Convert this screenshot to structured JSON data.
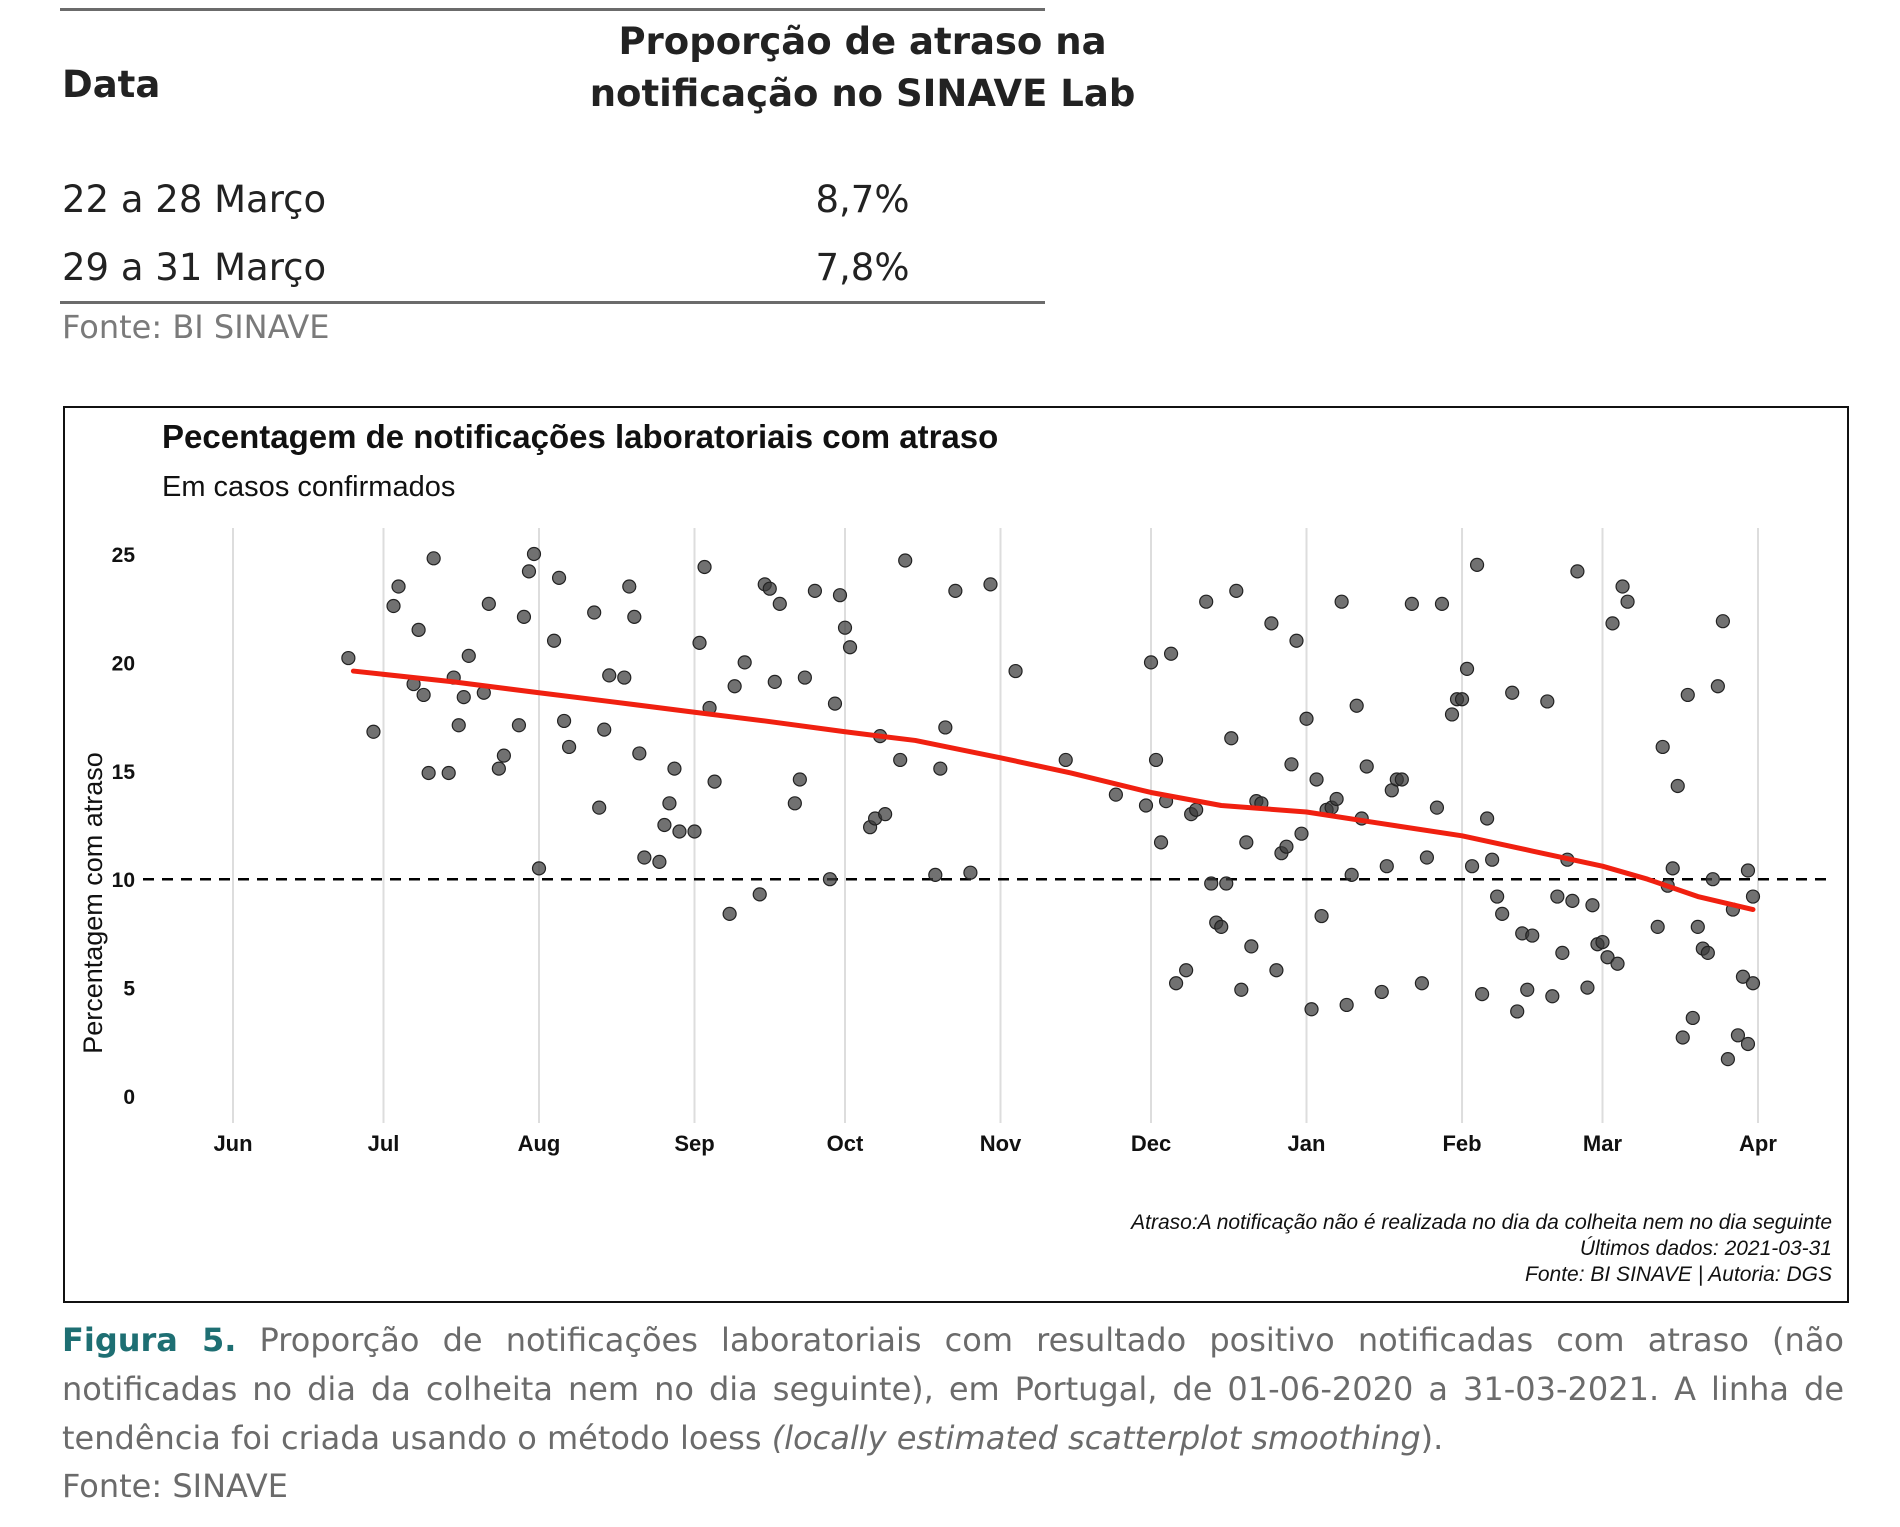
{
  "table": {
    "header_date": "Data",
    "header_prop": "Proporção de atraso na notificação no SINAVE Lab",
    "rows": [
      {
        "date": "22 a 28 Março",
        "value": "8,7%"
      },
      {
        "date": "29 a 31 Março",
        "value": "7,8%"
      }
    ],
    "source": "Fonte: BI SINAVE"
  },
  "chart_data": {
    "type": "scatter",
    "title": "Pecentagem de notificações laboratoriais com atraso",
    "subtitle": "Em casos confirmados",
    "ylabel": "Percentagem com atraso",
    "xlabel": "",
    "ylim": [
      0,
      25
    ],
    "yticks": [
      0,
      5,
      10,
      15,
      20,
      25
    ],
    "xtick_labels": [
      "Jun",
      "Jul",
      "Aug",
      "Sep",
      "Oct",
      "Nov",
      "Dec",
      "Jan",
      "Feb",
      "Mar",
      "Apr"
    ],
    "xtick_dates": [
      "2020-06-01",
      "2020-07-01",
      "2020-08-01",
      "2020-09-01",
      "2020-10-01",
      "2020-11-01",
      "2020-12-01",
      "2021-01-01",
      "2021-02-01",
      "2021-03-01",
      "2021-04-01"
    ],
    "grid": "vertical lines at month ticks",
    "reference_line": {
      "y": 10,
      "style": "dashed"
    },
    "colors": {
      "points": "#3a3a3a",
      "trend": "#f02010",
      "reference": "#000000",
      "grid": "#dddddd"
    },
    "annotations": [
      "Atraso:A notificação não é realizada no dia da colheita nem no dia seguinte",
      "Últimos dados: 2021-03-31",
      "Fonte: BI SINAVE | Autoria: DGS"
    ],
    "series": [
      {
        "name": "",
        "type": "scatter",
        "points": [
          [
            "2020-06-24",
            20.2
          ],
          [
            "2020-06-29",
            16.8
          ],
          [
            "2020-07-03",
            22.6
          ],
          [
            "2020-07-04",
            23.5
          ],
          [
            "2020-07-07",
            19.0
          ],
          [
            "2020-07-08",
            21.5
          ],
          [
            "2020-07-09",
            18.5
          ],
          [
            "2020-07-10",
            14.9
          ],
          [
            "2020-07-11",
            24.8
          ],
          [
            "2020-07-14",
            14.9
          ],
          [
            "2020-07-15",
            19.3
          ],
          [
            "2020-07-16",
            17.1
          ],
          [
            "2020-07-17",
            18.4
          ],
          [
            "2020-07-18",
            20.3
          ],
          [
            "2020-07-21",
            18.6
          ],
          [
            "2020-07-22",
            22.7
          ],
          [
            "2020-07-24",
            15.1
          ],
          [
            "2020-07-25",
            15.7
          ],
          [
            "2020-07-28",
            17.1
          ],
          [
            "2020-07-29",
            22.1
          ],
          [
            "2020-07-30",
            24.2
          ],
          [
            "2020-07-31",
            25.0
          ],
          [
            "2020-08-01",
            10.5
          ],
          [
            "2020-08-04",
            21.0
          ],
          [
            "2020-08-05",
            23.9
          ],
          [
            "2020-08-06",
            17.3
          ],
          [
            "2020-08-07",
            16.1
          ],
          [
            "2020-08-12",
            22.3
          ],
          [
            "2020-08-13",
            13.3
          ],
          [
            "2020-08-14",
            16.9
          ],
          [
            "2020-08-15",
            19.4
          ],
          [
            "2020-08-18",
            19.3
          ],
          [
            "2020-08-19",
            23.5
          ],
          [
            "2020-08-20",
            22.1
          ],
          [
            "2020-08-21",
            15.8
          ],
          [
            "2020-08-22",
            11.0
          ],
          [
            "2020-08-25",
            10.8
          ],
          [
            "2020-08-26",
            12.5
          ],
          [
            "2020-08-27",
            13.5
          ],
          [
            "2020-08-28",
            15.1
          ],
          [
            "2020-08-29",
            12.2
          ],
          [
            "2020-09-01",
            12.2
          ],
          [
            "2020-09-02",
            20.9
          ],
          [
            "2020-09-03",
            24.4
          ],
          [
            "2020-09-04",
            17.9
          ],
          [
            "2020-09-05",
            14.5
          ],
          [
            "2020-09-08",
            8.4
          ],
          [
            "2020-09-09",
            18.9
          ],
          [
            "2020-09-11",
            20.0
          ],
          [
            "2020-09-14",
            9.3
          ],
          [
            "2020-09-15",
            23.6
          ],
          [
            "2020-09-16",
            23.4
          ],
          [
            "2020-09-17",
            19.1
          ],
          [
            "2020-09-18",
            22.7
          ],
          [
            "2020-09-21",
            13.5
          ],
          [
            "2020-09-22",
            14.6
          ],
          [
            "2020-09-23",
            19.3
          ],
          [
            "2020-09-25",
            23.3
          ],
          [
            "2020-09-28",
            10.0
          ],
          [
            "2020-09-29",
            18.1
          ],
          [
            "2020-09-30",
            23.1
          ],
          [
            "2020-10-01",
            21.6
          ],
          [
            "2020-10-02",
            20.7
          ],
          [
            "2020-10-06",
            12.4
          ],
          [
            "2020-10-07",
            12.8
          ],
          [
            "2020-10-08",
            16.6
          ],
          [
            "2020-10-09",
            13.0
          ],
          [
            "2020-10-12",
            15.5
          ],
          [
            "2020-10-13",
            24.7
          ],
          [
            "2020-10-19",
            10.2
          ],
          [
            "2020-10-20",
            15.1
          ],
          [
            "2020-10-21",
            17.0
          ],
          [
            "2020-10-23",
            23.3
          ],
          [
            "2020-10-26",
            10.3
          ],
          [
            "2020-10-30",
            23.6
          ],
          [
            "2020-11-04",
            19.6
          ],
          [
            "2020-11-14",
            15.5
          ],
          [
            "2020-11-24",
            13.9
          ],
          [
            "2020-11-30",
            13.4
          ],
          [
            "2020-12-01",
            20.0
          ],
          [
            "2020-12-02",
            15.5
          ],
          [
            "2020-12-03",
            11.7
          ],
          [
            "2020-12-04",
            13.6
          ],
          [
            "2020-12-05",
            20.4
          ],
          [
            "2020-12-06",
            5.2
          ],
          [
            "2020-12-08",
            5.8
          ],
          [
            "2020-12-09",
            13.0
          ],
          [
            "2020-12-10",
            13.2
          ],
          [
            "2020-12-12",
            22.8
          ],
          [
            "2020-12-13",
            9.8
          ],
          [
            "2020-12-14",
            8.0
          ],
          [
            "2020-12-15",
            7.8
          ],
          [
            "2020-12-16",
            9.8
          ],
          [
            "2020-12-17",
            16.5
          ],
          [
            "2020-12-18",
            23.3
          ],
          [
            "2020-12-19",
            4.9
          ],
          [
            "2020-12-20",
            11.7
          ],
          [
            "2020-12-21",
            6.9
          ],
          [
            "2020-12-22",
            13.6
          ],
          [
            "2020-12-23",
            13.5
          ],
          [
            "2020-12-25",
            21.8
          ],
          [
            "2020-12-26",
            5.8
          ],
          [
            "2020-12-27",
            11.2
          ],
          [
            "2020-12-28",
            11.5
          ],
          [
            "2020-12-29",
            15.3
          ],
          [
            "2020-12-30",
            21.0
          ],
          [
            "2020-12-31",
            12.1
          ],
          [
            "2021-01-01",
            17.4
          ],
          [
            "2021-01-02",
            4.0
          ],
          [
            "2021-01-03",
            14.6
          ],
          [
            "2021-01-04",
            8.3
          ],
          [
            "2021-01-05",
            13.2
          ],
          [
            "2021-01-06",
            13.3
          ],
          [
            "2021-01-07",
            13.7
          ],
          [
            "2021-01-08",
            22.8
          ],
          [
            "2021-01-09",
            4.2
          ],
          [
            "2021-01-10",
            10.2
          ],
          [
            "2021-01-11",
            18.0
          ],
          [
            "2021-01-12",
            12.8
          ],
          [
            "2021-01-13",
            15.2
          ],
          [
            "2021-01-16",
            4.8
          ],
          [
            "2021-01-17",
            10.6
          ],
          [
            "2021-01-18",
            14.1
          ],
          [
            "2021-01-19",
            14.6
          ],
          [
            "2021-01-20",
            14.6
          ],
          [
            "2021-01-22",
            22.7
          ],
          [
            "2021-01-24",
            5.2
          ],
          [
            "2021-01-25",
            11.0
          ],
          [
            "2021-01-27",
            13.3
          ],
          [
            "2021-01-28",
            22.7
          ],
          [
            "2021-01-30",
            17.6
          ],
          [
            "2021-01-31",
            18.3
          ],
          [
            "2021-02-01",
            18.3
          ],
          [
            "2021-02-02",
            19.7
          ],
          [
            "2021-02-03",
            10.6
          ],
          [
            "2021-02-04",
            24.5
          ],
          [
            "2021-02-05",
            4.7
          ],
          [
            "2021-02-06",
            12.8
          ],
          [
            "2021-02-07",
            10.9
          ],
          [
            "2021-02-08",
            9.2
          ],
          [
            "2021-02-09",
            8.4
          ],
          [
            "2021-02-11",
            18.6
          ],
          [
            "2021-02-12",
            3.9
          ],
          [
            "2021-02-13",
            7.5
          ],
          [
            "2021-02-14",
            4.9
          ],
          [
            "2021-02-15",
            7.4
          ],
          [
            "2021-02-18",
            18.2
          ],
          [
            "2021-02-19",
            4.6
          ],
          [
            "2021-02-20",
            9.2
          ],
          [
            "2021-02-21",
            6.6
          ],
          [
            "2021-02-22",
            10.9
          ],
          [
            "2021-02-23",
            9.0
          ],
          [
            "2021-02-24",
            24.2
          ],
          [
            "2021-02-26",
            5.0
          ],
          [
            "2021-02-27",
            8.8
          ],
          [
            "2021-02-28",
            7.0
          ],
          [
            "2021-03-01",
            7.1
          ],
          [
            "2021-03-02",
            6.4
          ],
          [
            "2021-03-03",
            21.8
          ],
          [
            "2021-03-04",
            6.1
          ],
          [
            "2021-03-05",
            23.5
          ],
          [
            "2021-03-06",
            22.8
          ],
          [
            "2021-03-12",
            7.8
          ],
          [
            "2021-03-13",
            16.1
          ],
          [
            "2021-03-14",
            9.7
          ],
          [
            "2021-03-15",
            10.5
          ],
          [
            "2021-03-16",
            14.3
          ],
          [
            "2021-03-17",
            2.7
          ],
          [
            "2021-03-18",
            18.5
          ],
          [
            "2021-03-19",
            3.6
          ],
          [
            "2021-03-20",
            7.8
          ],
          [
            "2021-03-21",
            6.8
          ],
          [
            "2021-03-22",
            6.6
          ],
          [
            "2021-03-23",
            10.0
          ],
          [
            "2021-03-24",
            18.9
          ],
          [
            "2021-03-25",
            21.9
          ],
          [
            "2021-03-26",
            1.7
          ],
          [
            "2021-03-27",
            8.6
          ],
          [
            "2021-03-28",
            2.8
          ],
          [
            "2021-03-29",
            5.5
          ],
          [
            "2021-03-30",
            2.4
          ],
          [
            "2021-03-30",
            10.4
          ],
          [
            "2021-03-31",
            5.2
          ],
          [
            "2021-03-31",
            9.2
          ]
        ]
      },
      {
        "name": "",
        "type": "line",
        "points": [
          [
            "2020-06-25",
            19.6
          ],
          [
            "2020-07-15",
            19.1
          ],
          [
            "2020-08-01",
            18.6
          ],
          [
            "2020-08-15",
            18.2
          ],
          [
            "2020-09-01",
            17.7
          ],
          [
            "2020-09-15",
            17.3
          ],
          [
            "2020-10-01",
            16.8
          ],
          [
            "2020-10-15",
            16.4
          ],
          [
            "2020-11-01",
            15.6
          ],
          [
            "2020-11-15",
            14.9
          ],
          [
            "2020-12-01",
            14.0
          ],
          [
            "2020-12-15",
            13.4
          ],
          [
            "2021-01-01",
            13.1
          ],
          [
            "2021-01-15",
            12.6
          ],
          [
            "2021-02-01",
            12.0
          ],
          [
            "2021-02-15",
            11.3
          ],
          [
            "2021-03-01",
            10.6
          ],
          [
            "2021-03-10",
            10.0
          ],
          [
            "2021-03-20",
            9.2
          ],
          [
            "2021-03-31",
            8.6
          ]
        ]
      }
    ]
  },
  "caption": {
    "figure_label": "Figura 5.",
    "text_before_italic": " Proporção de notificações laboratoriais com resultado positivo notificadas com atraso (não notificadas no dia da colheita nem no dia seguinte), em Portugal, de 01-06-2020 a 31-03-2021. A linha de tendência foi criada usando o método loess ",
    "italic_text": "(locally estimated scatterplot smoothing",
    "text_after_italic": ").",
    "source": "Fonte: SINAVE"
  }
}
